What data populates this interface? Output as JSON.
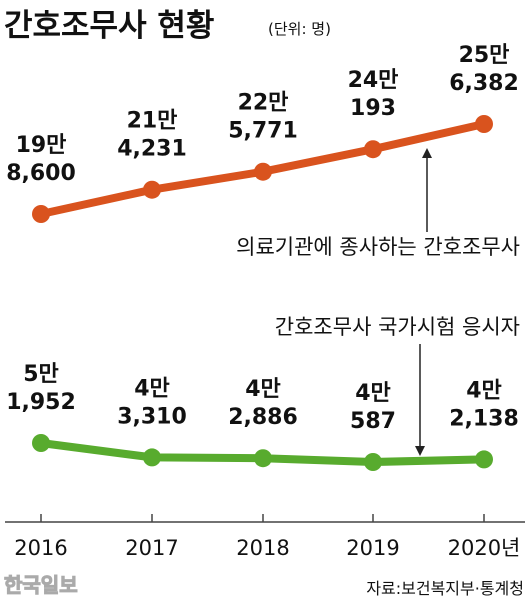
{
  "title": "간호조무사 현황",
  "unit": "(단위: 명)",
  "watermark": "한국일보",
  "source": "자료:보건복지부·통계청",
  "colors": {
    "orange": "#d9531e",
    "green": "#58ab2e",
    "axis": "#444444",
    "text": "#111111"
  },
  "chart_data": {
    "type": "line",
    "x": [
      "2016",
      "2017",
      "2018",
      "2019",
      "2020년"
    ],
    "series": [
      {
        "name": "의료기관에 종사하는 간호조무사",
        "values": [
          198600,
          214231,
          225771,
          240193,
          256382
        ],
        "labels": [
          [
            "19만",
            "8,600"
          ],
          [
            "21만",
            "4,231"
          ],
          [
            "22만",
            "5,771"
          ],
          [
            "24만",
            "193"
          ],
          [
            "25만",
            "6,382"
          ]
        ]
      },
      {
        "name": "간호조무사 국가시험 응시자",
        "values": [
          51952,
          43310,
          42886,
          40587,
          42138
        ],
        "labels": [
          [
            "5만",
            "1,952"
          ],
          [
            "4만",
            "3,310"
          ],
          [
            "4만",
            "2,886"
          ],
          [
            "4만",
            "587"
          ],
          [
            "4만",
            "2,138"
          ]
        ]
      }
    ]
  }
}
